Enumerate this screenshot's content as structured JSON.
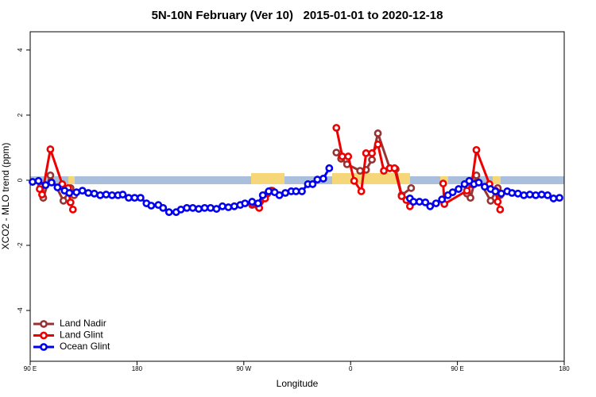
{
  "chart_data": {
    "type": "line",
    "title": "5N-10N February (Ver 10)   2015-01-01 to 2020-12-18",
    "x_label": "Longitude",
    "y_label": "XCO2 - MLO trend (ppm)",
    "xlim": [
      90,
      540
    ],
    "xticks": [
      {
        "value": 90,
        "label": "90 E"
      },
      {
        "value": 180,
        "label": "180"
      },
      {
        "value": 270,
        "label": "90 W"
      },
      {
        "value": 360,
        "label": "0"
      },
      {
        "value": 450,
        "label": "90 E"
      },
      {
        "value": 540,
        "label": "180"
      }
    ],
    "ylim": [
      -5.56,
      4.56
    ],
    "yticks": [
      -4,
      -2,
      0,
      2,
      4
    ],
    "legend": "bottom-left",
    "series": [
      {
        "name": "Land Nadir",
        "color": "#993333",
        "x": [
          99,
          101,
          107,
          118,
          124,
          127,
          null,
          277,
          282,
          290,
          294,
          null,
          348,
          352,
          357,
          368,
          373,
          378,
          383,
          393,
          398,
          403,
          411,
          null,
          458,
          461,
          466,
          478,
          484,
          486
        ],
        "values": [
          -0.2,
          -0.54,
          0.15,
          -0.63,
          -0.24,
          -0.46,
          null,
          -0.76,
          -0.8,
          -0.41,
          -0.32,
          null,
          0.85,
          0.66,
          0.49,
          0.29,
          0.32,
          0.63,
          1.44,
          0.37,
          0.34,
          -0.46,
          -0.24,
          null,
          -0.41,
          -0.54,
          0.15,
          -0.63,
          -0.24,
          -0.46
        ]
      },
      {
        "name": "Land Glint",
        "color": "#ee0000",
        "x": [
          98,
          100,
          107,
          117,
          122,
          124,
          126,
          null,
          277,
          283,
          288,
          293,
          null,
          348,
          353,
          358,
          363,
          369,
          373,
          378,
          383,
          388,
          393,
          397,
          403,
          407,
          410,
          null,
          438,
          439,
          458,
          462,
          466,
          477,
          482,
          484,
          486
        ],
        "values": [
          -0.27,
          -0.44,
          0.95,
          -0.12,
          -0.24,
          -0.68,
          -0.9,
          null,
          -0.73,
          -0.85,
          -0.56,
          -0.32,
          null,
          1.61,
          0.73,
          0.73,
          -0.02,
          -0.34,
          0.83,
          0.83,
          1.1,
          0.29,
          0.37,
          0.37,
          -0.49,
          -0.61,
          -0.8,
          null,
          -0.1,
          -0.73,
          -0.32,
          -0.12,
          0.93,
          -0.12,
          -0.32,
          -0.66,
          -0.9
        ]
      },
      {
        "name": "Ocean Glint",
        "color": "#0000ee",
        "x": [
          92,
          97,
          103,
          108,
          113,
          119,
          123,
          129,
          134,
          139,
          144,
          149,
          154,
          159,
          164,
          168,
          173,
          178,
          183,
          188,
          192,
          198,
          202,
          207,
          213,
          217,
          222,
          227,
          232,
          237,
          242,
          247,
          252,
          257,
          262,
          267,
          271,
          277,
          282,
          286,
          291,
          296,
          300,
          305,
          310,
          314,
          319,
          324,
          328,
          332,
          337,
          342,
          null,
          410,
          413,
          418,
          423,
          427,
          432,
          437,
          442,
          446,
          451,
          456,
          460,
          464,
          468,
          473,
          478,
          482,
          487,
          492,
          496,
          501,
          506,
          511,
          516,
          521,
          526,
          531,
          536
        ],
        "values": [
          -0.05,
          -0.02,
          -0.15,
          -0.07,
          -0.22,
          -0.32,
          -0.39,
          -0.37,
          -0.32,
          -0.39,
          -0.41,
          -0.46,
          -0.44,
          -0.46,
          -0.46,
          -0.44,
          -0.54,
          -0.54,
          -0.54,
          -0.71,
          -0.78,
          -0.76,
          -0.85,
          -0.98,
          -0.98,
          -0.9,
          -0.85,
          -0.85,
          -0.88,
          -0.85,
          -0.85,
          -0.88,
          -0.8,
          -0.83,
          -0.8,
          -0.76,
          -0.71,
          -0.66,
          -0.71,
          -0.46,
          -0.34,
          -0.37,
          -0.46,
          -0.39,
          -0.34,
          -0.34,
          -0.34,
          -0.12,
          -0.12,
          0.02,
          0.05,
          0.37,
          null,
          -0.56,
          -0.66,
          -0.66,
          -0.68,
          -0.8,
          -0.71,
          -0.59,
          -0.46,
          -0.37,
          -0.27,
          -0.12,
          -0.02,
          -0.12,
          -0.07,
          -0.2,
          -0.27,
          -0.34,
          -0.41,
          -0.34,
          -0.39,
          -0.41,
          -0.46,
          -0.44,
          -0.46,
          -0.44,
          -0.46,
          -0.56,
          -0.54
        ]
      }
    ]
  }
}
